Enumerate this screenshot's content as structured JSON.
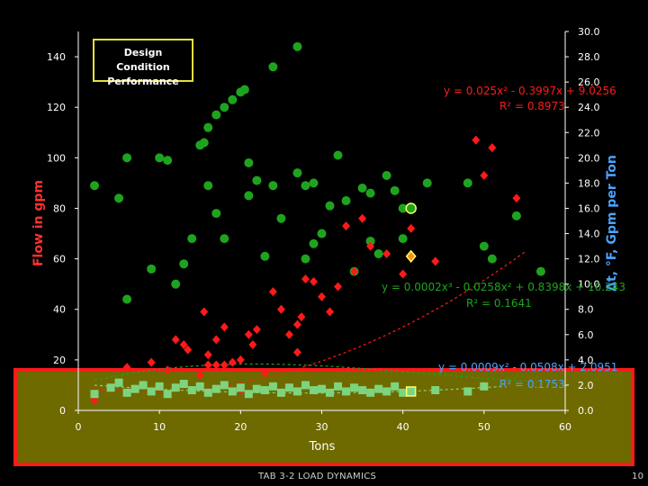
{
  "slide": {
    "footer_left": "TAB 3-2 LOAD DYNAMICS",
    "page_number": "10"
  },
  "chart_data": {
    "type": "scatter",
    "title": "Design Condition Performance",
    "xlabel": "Tons",
    "ylabel_left": "Flow in gpm",
    "ylabel_right": "Δt, °F, Gpm per Ton",
    "xlim": [
      0,
      60
    ],
    "ylim_left": [
      0,
      150
    ],
    "ylim_right": [
      0,
      30
    ],
    "x_ticks": [
      0,
      10,
      20,
      30,
      40,
      50,
      60
    ],
    "y_ticks_left": [
      0,
      20,
      40,
      60,
      80,
      100,
      120,
      140
    ],
    "y_ticks_right": [
      0.0,
      2.0,
      4.0,
      6.0,
      8.0,
      10.0,
      12.0,
      14.0,
      16.0,
      18.0,
      20.0,
      22.0,
      24.0,
      26.0,
      28.0,
      30.0
    ],
    "grid": false,
    "highlight_box": {
      "color": "#ff1a1a",
      "fill": "#6e6a00",
      "y_range_left": [
        -12,
        17
      ]
    },
    "series": [
      {
        "marker": "circle",
        "color": "#1fa31f",
        "axis": "left",
        "points": [
          [
            2,
            89
          ],
          [
            5,
            84
          ],
          [
            6,
            44
          ],
          [
            6,
            100
          ],
          [
            9,
            56
          ],
          [
            10,
            100
          ],
          [
            11,
            99
          ],
          [
            12,
            50
          ],
          [
            13,
            58
          ],
          [
            14,
            68
          ],
          [
            15,
            105
          ],
          [
            15.5,
            106
          ],
          [
            16,
            89
          ],
          [
            16,
            112
          ],
          [
            17,
            78
          ],
          [
            17,
            117
          ],
          [
            18,
            120
          ],
          [
            18,
            68
          ],
          [
            19,
            123
          ],
          [
            20,
            126
          ],
          [
            20.5,
            127
          ],
          [
            21,
            98
          ],
          [
            21,
            85
          ],
          [
            22,
            91
          ],
          [
            23,
            61
          ],
          [
            24,
            89
          ],
          [
            24,
            136
          ],
          [
            25,
            76
          ],
          [
            27,
            94
          ],
          [
            27,
            144
          ],
          [
            28,
            60
          ],
          [
            28,
            89
          ],
          [
            29,
            66
          ],
          [
            29,
            90
          ],
          [
            30,
            70
          ],
          [
            31,
            81
          ],
          [
            32,
            101
          ],
          [
            33,
            83
          ],
          [
            34,
            55
          ],
          [
            35,
            88
          ],
          [
            36,
            67
          ],
          [
            36,
            86
          ],
          [
            37,
            62
          ],
          [
            38,
            93
          ],
          [
            39,
            87
          ],
          [
            40,
            80
          ],
          [
            40,
            68
          ],
          [
            43,
            90
          ],
          [
            48,
            90
          ],
          [
            50,
            65
          ],
          [
            51,
            60
          ],
          [
            54,
            77
          ],
          [
            57,
            55
          ]
        ]
      },
      {
        "marker": "diamond",
        "color": "#ff1a1a",
        "axis": "left",
        "points": [
          [
            2,
            4
          ],
          [
            6,
            17
          ],
          [
            9,
            19
          ],
          [
            10,
            9
          ],
          [
            11,
            16
          ],
          [
            12,
            28
          ],
          [
            13,
            26
          ],
          [
            13.5,
            24
          ],
          [
            15,
            14
          ],
          [
            15.5,
            39
          ],
          [
            16,
            22
          ],
          [
            16,
            18
          ],
          [
            17,
            28
          ],
          [
            17,
            18
          ],
          [
            18,
            18
          ],
          [
            18,
            33
          ],
          [
            19,
            19
          ],
          [
            20,
            20
          ],
          [
            20,
            8
          ],
          [
            21,
            30
          ],
          [
            21.5,
            26
          ],
          [
            22,
            32
          ],
          [
            23,
            15
          ],
          [
            24,
            47
          ],
          [
            25,
            40
          ],
          [
            26,
            30
          ],
          [
            27,
            23
          ],
          [
            27,
            34
          ],
          [
            27.5,
            37
          ],
          [
            28,
            52
          ],
          [
            29,
            51
          ],
          [
            30,
            45
          ],
          [
            31,
            39
          ],
          [
            32,
            49
          ],
          [
            33,
            73
          ],
          [
            34,
            55
          ],
          [
            35,
            76
          ],
          [
            36,
            65
          ],
          [
            38,
            62
          ],
          [
            40,
            54
          ],
          [
            41,
            72
          ],
          [
            44,
            59
          ],
          [
            49,
            107
          ],
          [
            50,
            93
          ],
          [
            51,
            104
          ],
          [
            54,
            84
          ]
        ]
      },
      {
        "marker": "square",
        "color": "#7ed47e",
        "axis": "right",
        "points": [
          [
            2,
            1.3
          ],
          [
            4,
            1.8
          ],
          [
            5,
            2.2
          ],
          [
            6,
            1.4
          ],
          [
            7,
            1.7
          ],
          [
            8,
            2.0
          ],
          [
            9,
            1.5
          ],
          [
            10,
            1.9
          ],
          [
            11,
            1.3
          ],
          [
            12,
            1.8
          ],
          [
            13,
            2.1
          ],
          [
            14,
            1.6
          ],
          [
            15,
            1.9
          ],
          [
            16,
            1.4
          ],
          [
            17,
            1.7
          ],
          [
            18,
            2.0
          ],
          [
            19,
            1.5
          ],
          [
            20,
            1.8
          ],
          [
            21,
            1.3
          ],
          [
            22,
            1.7
          ],
          [
            23,
            1.6
          ],
          [
            24,
            1.9
          ],
          [
            25,
            1.4
          ],
          [
            26,
            1.8
          ],
          [
            27,
            1.5
          ],
          [
            28,
            2.0
          ],
          [
            29,
            1.6
          ],
          [
            30,
            1.7
          ],
          [
            31,
            1.4
          ],
          [
            32,
            1.9
          ],
          [
            33,
            1.5
          ],
          [
            34,
            1.8
          ],
          [
            35,
            1.6
          ],
          [
            36,
            1.4
          ],
          [
            37,
            1.7
          ],
          [
            38,
            1.5
          ],
          [
            39,
            1.9
          ],
          [
            40,
            1.4
          ],
          [
            41,
            1.5
          ],
          [
            44,
            1.6
          ],
          [
            48,
            1.5
          ],
          [
            50,
            1.9
          ]
        ]
      }
    ],
    "highlighted_points": [
      {
        "x": 41,
        "y": 80,
        "marker": "circle",
        "color": "#1fa31f"
      },
      {
        "x": 41,
        "y": 61,
        "marker": "diamond",
        "color": "#ff8c1a"
      },
      {
        "x": 41,
        "y": 1.5,
        "marker": "square",
        "color": "#7ed47e",
        "axis": "right"
      }
    ],
    "trendlines": [
      {
        "type": "poly2",
        "axis": "left",
        "color": "#ff1a1a",
        "coef": [
          0.025,
          -0.3997,
          9.0256
        ],
        "x_range": [
          2,
          55
        ],
        "equation": "y = 0.025x² - 0.3997x + 9.0256",
        "r2": "R² = 0.8973",
        "label_color": "#ff1a1a"
      },
      {
        "type": "poly3",
        "axis": "left",
        "color": "#1fa31f",
        "coef": [
          0.0002,
          -0.0258,
          0.8398,
          10.243
        ],
        "x_range": [
          2,
          58
        ],
        "equation": "y = 0.0002x³ - 0.0258x² + 0.8398x + 10.243",
        "r2": "R² = 0.1641",
        "label_color": "#1fa31f"
      },
      {
        "type": "poly2",
        "axis": "right",
        "color": "#7ed47e",
        "coef": [
          0.0009,
          -0.0508,
          2.0951
        ],
        "x_range": [
          2,
          52
        ],
        "equation": "y = 0.0009x² - 0.0508x + 2.0951",
        "r2": "R² = 0.1753",
        "label_color": "#4aa3ff"
      }
    ]
  }
}
